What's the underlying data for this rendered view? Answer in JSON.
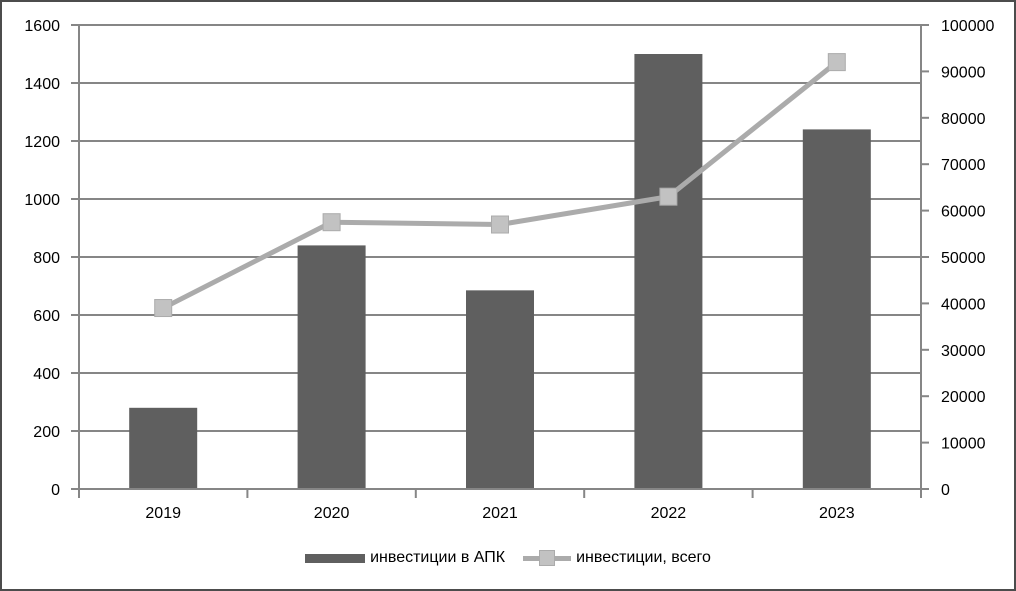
{
  "chart_data": {
    "type": "combo-bar-line",
    "title": "",
    "categories": [
      "2019",
      "2020",
      "2021",
      "2022",
      "2023"
    ],
    "series": [
      {
        "name": "инвестиции в АПК",
        "type": "bar",
        "axis": "left",
        "values": [
          280,
          840,
          685,
          1500,
          1240
        ],
        "color": "#5f5f5f"
      },
      {
        "name": "инвестиции, всего",
        "type": "line",
        "axis": "right",
        "values": [
          39000,
          57500,
          57000,
          63000,
          92000
        ],
        "color": "#ababab",
        "marker": "square",
        "marker_color": "#c2c2c2"
      }
    ],
    "axes": {
      "left": {
        "min": 0,
        "max": 1600,
        "step": 200
      },
      "right": {
        "min": 0,
        "max": 100000,
        "step": 10000
      }
    },
    "grid": "horizontal-left-axis",
    "legend_position": "bottom",
    "colors": {
      "grid": "#868686",
      "axis": "#868686",
      "text": "#000000",
      "background": "#ffffff",
      "border": "#4c4c4c"
    }
  }
}
